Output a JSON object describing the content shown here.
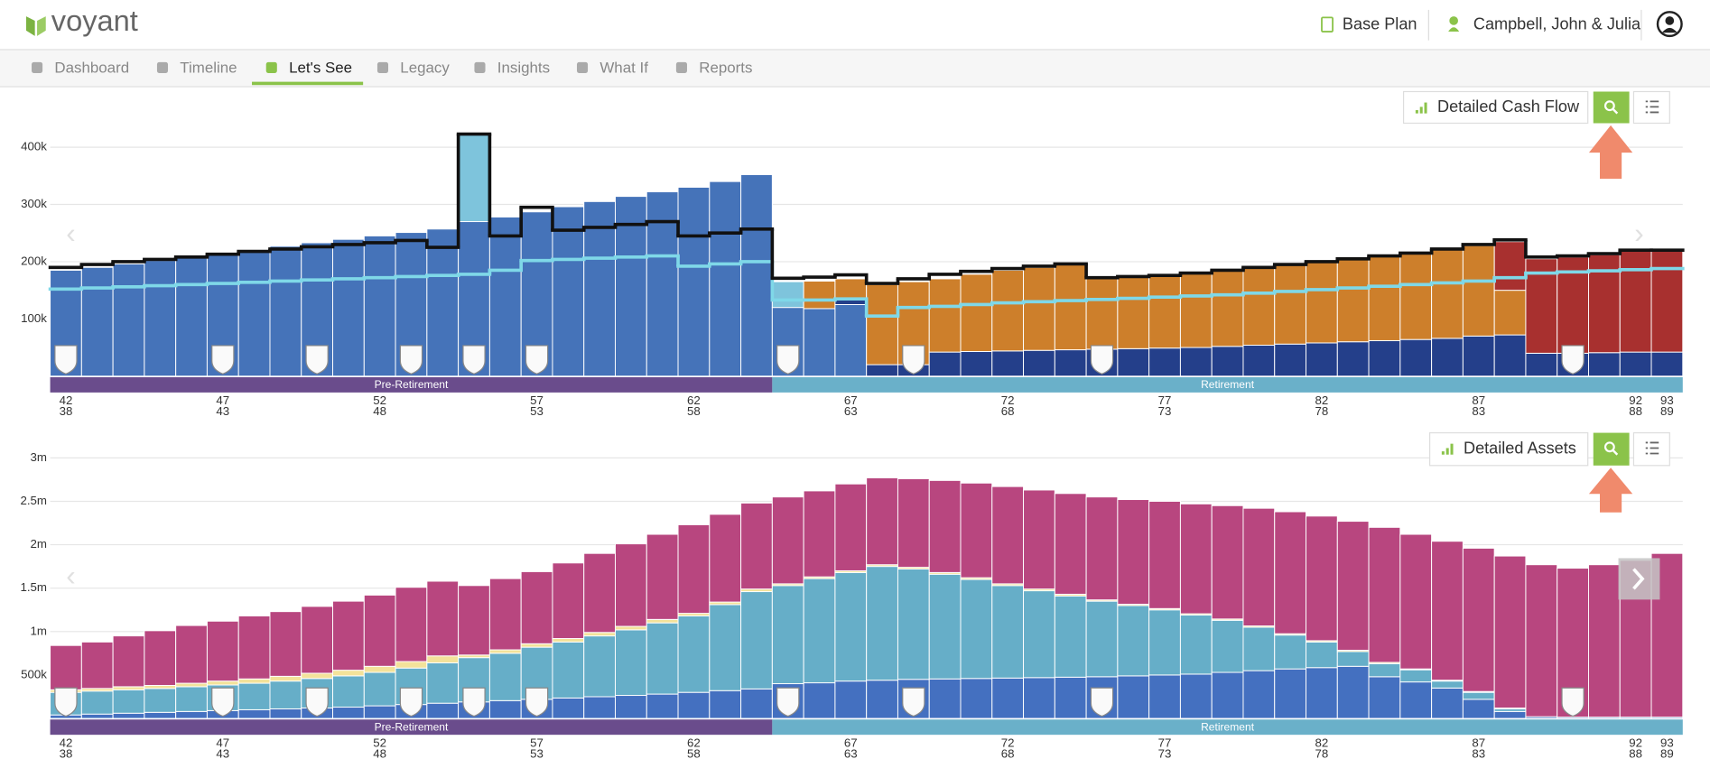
{
  "header": {
    "logo": "voyant",
    "plan": "Base Plan",
    "client": "Campbell, John & Julia"
  },
  "nav": {
    "tabs": [
      "Dashboard",
      "Timeline",
      "Let's See",
      "Legacy",
      "Insights",
      "What If",
      "Reports"
    ],
    "active_tab": 2
  },
  "chart_data": [
    {
      "type": "bar",
      "title": "Detailed Cash Flow",
      "categories": [
        "42",
        null,
        null,
        null,
        null,
        "47",
        null,
        null,
        null,
        null,
        "52",
        null,
        null,
        null,
        null,
        "57",
        null,
        null,
        null,
        null,
        "62",
        null,
        null,
        null,
        null,
        "67",
        null,
        null,
        null,
        null,
        "72",
        null,
        null,
        null,
        null,
        "77",
        null,
        null,
        null,
        null,
        "82",
        null,
        null,
        null,
        null,
        "87",
        null,
        null,
        null,
        null,
        "92",
        "93"
      ],
      "spouse_ages": [
        "38",
        null,
        null,
        null,
        null,
        "43",
        null,
        null,
        null,
        null,
        "48",
        null,
        null,
        null,
        null,
        "53",
        null,
        null,
        null,
        null,
        "58",
        null,
        null,
        null,
        null,
        "63",
        null,
        null,
        null,
        null,
        "68",
        null,
        null,
        null,
        null,
        "73",
        null,
        null,
        null,
        null,
        "78",
        null,
        null,
        null,
        null,
        "83",
        null,
        null,
        null,
        null,
        "88",
        "89"
      ],
      "phases": [
        {
          "name": "Pre-Retirement",
          "years": 23,
          "color": "#6a4c8c"
        },
        {
          "name": "Retirement",
          "years": 29,
          "color": "#6ab0c9"
        }
      ],
      "event_ages": [
        42,
        47,
        50,
        53,
        55,
        57,
        65,
        69,
        75,
        90
      ],
      "ylim": [
        0,
        450000
      ],
      "yticks": [
        {
          "value": 100000,
          "label": "100k"
        },
        {
          "value": 200000,
          "label": "200k"
        },
        {
          "value": 300000,
          "label": "300k"
        },
        {
          "value": 400000,
          "label": "400k"
        }
      ],
      "grid": true,
      "series": [
        {
          "color": "#4573b9",
          "values": [
            185000,
            190000,
            196000,
            202000,
            208000,
            215000,
            221000,
            227000,
            233000,
            239000,
            245000,
            251000,
            257000,
            270000,
            278000,
            287000,
            296000,
            305000,
            314000,
            322000,
            330000,
            340000,
            352000,
            120000,
            118000,
            125000,
            null,
            null,
            null,
            null,
            null,
            null,
            null,
            null,
            null,
            null,
            null,
            null,
            null,
            null,
            null,
            null,
            null,
            null,
            null,
            null,
            null,
            null,
            null,
            null,
            null,
            null
          ]
        },
        {
          "color": "#243f8a",
          "values": [
            null,
            null,
            null,
            null,
            null,
            null,
            null,
            null,
            null,
            null,
            null,
            null,
            null,
            null,
            null,
            null,
            null,
            null,
            null,
            null,
            null,
            null,
            null,
            null,
            null,
            10000,
            20000,
            20000,
            42000,
            43000,
            44000,
            45000,
            46000,
            47000,
            48000,
            49000,
            50000,
            52000,
            54000,
            56000,
            58000,
            60000,
            62000,
            64000,
            66000,
            70000,
            72000,
            40000,
            40000,
            41000,
            42000,
            42000
          ]
        },
        {
          "color": "#7ec4dc",
          "values": [
            null,
            null,
            null,
            null,
            null,
            null,
            null,
            null,
            null,
            null,
            null,
            null,
            null,
            153000,
            null,
            null,
            null,
            null,
            null,
            null,
            null,
            null,
            null,
            45000,
            null,
            null,
            null,
            null,
            null,
            null,
            null,
            null,
            null,
            null,
            null,
            null,
            null,
            null,
            null,
            null,
            null,
            null,
            null,
            null,
            null,
            null,
            null,
            null,
            null,
            null,
            null,
            null
          ]
        },
        {
          "color": "#cd7f2b",
          "values": [
            null,
            null,
            null,
            null,
            null,
            null,
            null,
            null,
            null,
            null,
            null,
            null,
            null,
            null,
            null,
            null,
            null,
            null,
            null,
            null,
            null,
            null,
            null,
            null,
            48000,
            35000,
            140000,
            145000,
            128000,
            135000,
            141000,
            145000,
            149000,
            125000,
            126000,
            127000,
            130000,
            133000,
            136000,
            139000,
            142000,
            145000,
            148000,
            151000,
            156000,
            158000,
            78000,
            null,
            null,
            null,
            null,
            null
          ]
        },
        {
          "color": "#a8302f",
          "values": [
            null,
            null,
            null,
            null,
            null,
            null,
            null,
            null,
            null,
            null,
            null,
            null,
            null,
            null,
            null,
            null,
            null,
            null,
            null,
            null,
            null,
            null,
            null,
            null,
            null,
            null,
            null,
            null,
            null,
            null,
            null,
            null,
            null,
            null,
            null,
            null,
            null,
            null,
            null,
            null,
            null,
            null,
            null,
            null,
            null,
            null,
            85000,
            165000,
            168000,
            171000,
            176000,
            178000
          ]
        },
        {
          "type": "step",
          "color": "#7fd8e8",
          "values": [
            152000,
            154000,
            156000,
            158000,
            160000,
            162000,
            164000,
            166000,
            168000,
            170000,
            172000,
            174000,
            176000,
            178000,
            185000,
            202000,
            204000,
            206000,
            208000,
            210000,
            192000,
            196000,
            200000,
            133000,
            133000,
            135000,
            105000,
            120000,
            122000,
            125000,
            128000,
            130000,
            132000,
            134000,
            136000,
            138000,
            140000,
            142000,
            145000,
            148000,
            151000,
            154000,
            157000,
            160000,
            163000,
            166000,
            172000,
            180000,
            182000,
            184000,
            186000,
            188000
          ]
        },
        {
          "type": "step",
          "color": "#111111",
          "values": [
            190000,
            195000,
            200000,
            204000,
            208000,
            213000,
            218000,
            222000,
            226000,
            230000,
            233000,
            237000,
            225000,
            423000,
            245000,
            295000,
            255000,
            260000,
            265000,
            270000,
            245000,
            250000,
            257000,
            171000,
            173000,
            177000,
            162000,
            170000,
            178000,
            183000,
            188000,
            192000,
            196000,
            172000,
            174000,
            176000,
            180000,
            185000,
            190000,
            195000,
            200000,
            205000,
            210000,
            215000,
            222000,
            230000,
            238000,
            208000,
            210000,
            214000,
            220000,
            220000
          ]
        }
      ]
    },
    {
      "type": "bar",
      "title": "Detailed Assets",
      "categories": [
        "42",
        null,
        null,
        null,
        null,
        "47",
        null,
        null,
        null,
        null,
        "52",
        null,
        null,
        null,
        null,
        "57",
        null,
        null,
        null,
        null,
        "62",
        null,
        null,
        null,
        null,
        "67",
        null,
        null,
        null,
        null,
        "72",
        null,
        null,
        null,
        null,
        "77",
        null,
        null,
        null,
        null,
        "82",
        null,
        null,
        null,
        null,
        "87",
        null,
        null,
        null,
        null,
        "92",
        "93"
      ],
      "spouse_ages": [
        "38",
        null,
        null,
        null,
        null,
        "43",
        null,
        null,
        null,
        null,
        "48",
        null,
        null,
        null,
        null,
        "53",
        null,
        null,
        null,
        null,
        "58",
        null,
        null,
        null,
        null,
        "63",
        null,
        null,
        null,
        null,
        "68",
        null,
        null,
        null,
        null,
        "73",
        null,
        null,
        null,
        null,
        "78",
        null,
        null,
        null,
        null,
        "83",
        null,
        null,
        null,
        null,
        "88",
        "89"
      ],
      "phases": [
        {
          "name": "Pre-Retirement",
          "years": 23,
          "color": "#6a4c8c"
        },
        {
          "name": "Retirement",
          "years": 29,
          "color": "#6ab0c9"
        }
      ],
      "event_ages": [
        42,
        47,
        50,
        53,
        55,
        57,
        65,
        69,
        75,
        90
      ],
      "ylim": [
        0,
        3000000
      ],
      "yticks": [
        {
          "value": 500000,
          "label": "500k"
        },
        {
          "value": 1000000,
          "label": "1m"
        },
        {
          "value": 1500000,
          "label": "1.5m"
        },
        {
          "value": 2000000,
          "label": "2m"
        },
        {
          "value": 2500000,
          "label": "2.5m"
        },
        {
          "value": 3000000,
          "label": "3m"
        }
      ],
      "grid": true,
      "series": [
        {
          "color": "#4470c0",
          "values": [
            40000,
            50000,
            60000,
            70000,
            80000,
            90000,
            100000,
            110000,
            120000,
            130000,
            145000,
            160000,
            175000,
            190000,
            205000,
            220000,
            235000,
            250000,
            265000,
            280000,
            300000,
            320000,
            340000,
            400000,
            410000,
            430000,
            440000,
            450000,
            455000,
            460000,
            465000,
            470000,
            475000,
            480000,
            490000,
            500000,
            510000,
            530000,
            550000,
            570000,
            585000,
            600000,
            480000,
            420000,
            350000,
            220000,
            80000,
            20000,
            15000,
            15000,
            15000,
            15000
          ]
        },
        {
          "color": "#66aec8",
          "values": [
            260000,
            265000,
            270000,
            275000,
            285000,
            295000,
            305000,
            320000,
            340000,
            360000,
            385000,
            420000,
            465000,
            510000,
            545000,
            600000,
            645000,
            700000,
            755000,
            820000,
            880000,
            990000,
            1120000,
            1130000,
            1200000,
            1250000,
            1310000,
            1270000,
            1205000,
            1140000,
            1065000,
            1000000,
            935000,
            870000,
            810000,
            750000,
            680000,
            600000,
            500000,
            390000,
            295000,
            170000,
            150000,
            140000,
            80000,
            80000,
            30000,
            null,
            null,
            null,
            null,
            null
          ]
        },
        {
          "color": "#f3e29a",
          "values": [
            30000,
            30000,
            35000,
            35000,
            40000,
            45000,
            50000,
            55000,
            60000,
            65000,
            70000,
            75000,
            80000,
            30000,
            40000,
            40000,
            40000,
            40000,
            40000,
            40000,
            30000,
            30000,
            30000,
            20000,
            20000,
            20000,
            20000,
            20000,
            20000,
            20000,
            20000,
            20000,
            20000,
            15000,
            15000,
            15000,
            15000,
            15000,
            15000,
            15000,
            15000,
            15000,
            15000,
            10000,
            10000,
            10000,
            10000,
            null,
            null,
            null,
            null,
            null
          ]
        },
        {
          "color": "#b8467f",
          "values": [
            510000,
            535000,
            585000,
            630000,
            665000,
            690000,
            725000,
            745000,
            770000,
            795000,
            820000,
            855000,
            860000,
            800000,
            820000,
            830000,
            870000,
            910000,
            950000,
            980000,
            1020000,
            1010000,
            990000,
            1000000,
            990000,
            1000000,
            1000000,
            1020000,
            1060000,
            1090000,
            1120000,
            1140000,
            1160000,
            1185000,
            1205000,
            1235000,
            1265000,
            1305000,
            1355000,
            1405000,
            1435000,
            1485000,
            1555000,
            1550000,
            1600000,
            1650000,
            1750000,
            1750000,
            1715000,
            1755000,
            1805000,
            1885000
          ]
        }
      ]
    }
  ]
}
